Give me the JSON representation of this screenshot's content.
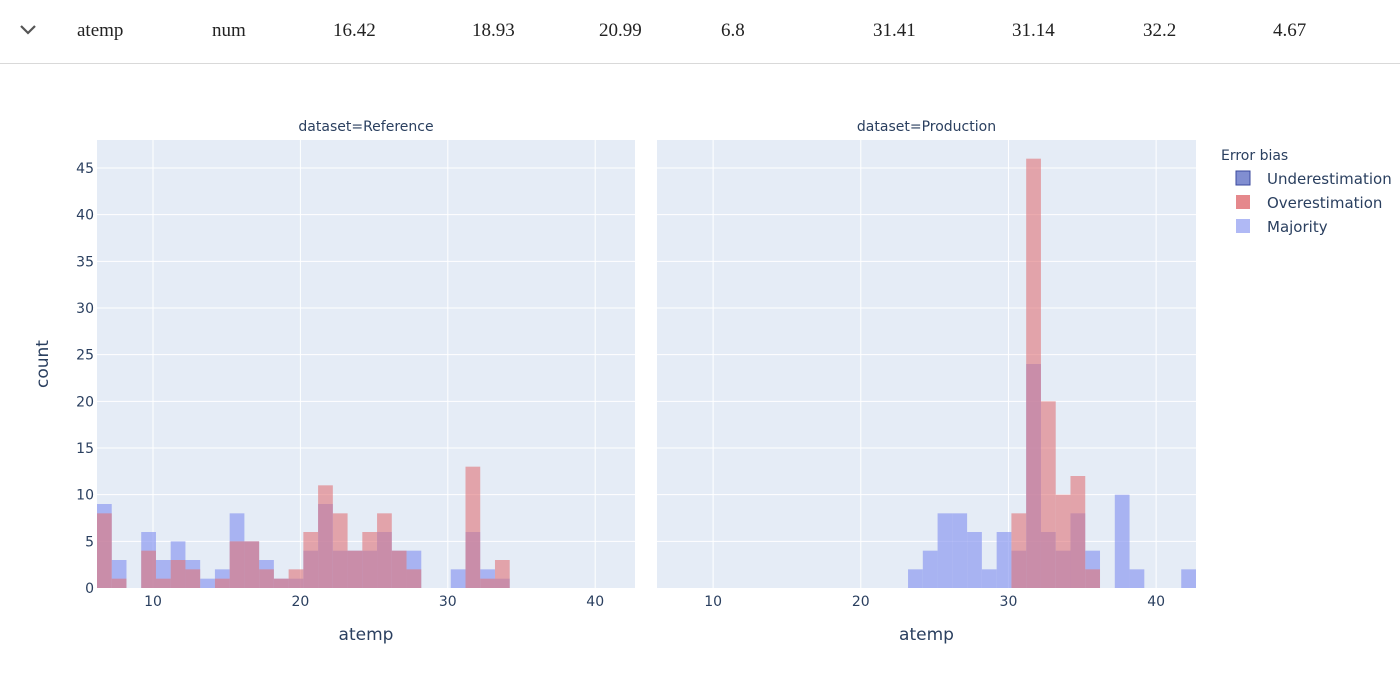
{
  "summary_row": {
    "feature": "atemp",
    "type": "num",
    "values": [
      "16.42",
      "18.93",
      "20.99",
      "6.8",
      "31.41",
      "31.14",
      "32.2",
      "4.67"
    ]
  },
  "colors": {
    "plot_bg": "#e5ecf6",
    "underestimation": "#6b7ac9",
    "overestimation": "#e07378",
    "majority": "#8f9bf1"
  },
  "chart_data": {
    "type": "bar",
    "barmode": "overlay",
    "ylabel": "count",
    "ylim": [
      0,
      48
    ],
    "yticks": [
      0,
      5,
      10,
      15,
      20,
      25,
      30,
      35,
      40,
      45
    ],
    "xticks": [
      10,
      20,
      30,
      40
    ],
    "grid": true,
    "legend": {
      "title": "Error bias",
      "placement": "right",
      "items": [
        "Underestimation",
        "Overestimation",
        "Majority"
      ]
    },
    "panels": [
      {
        "title": "dataset=Reference",
        "xlabel": "atemp",
        "xlim": [
          6.2,
          42.7
        ],
        "bin_width": 1,
        "series": [
          {
            "name": "Majority",
            "bins": [
              [
                6.2,
                9
              ],
              [
                7.2,
                3
              ],
              [
                9.2,
                6
              ],
              [
                10.2,
                3
              ],
              [
                11.2,
                5
              ],
              [
                12.2,
                3
              ],
              [
                13.2,
                1
              ],
              [
                14.2,
                2
              ],
              [
                15.2,
                8
              ],
              [
                16.2,
                5
              ],
              [
                17.2,
                3
              ],
              [
                18.2,
                1
              ],
              [
                19.2,
                1
              ],
              [
                20.2,
                4
              ],
              [
                21.2,
                9
              ],
              [
                22.2,
                4
              ],
              [
                23.2,
                4
              ],
              [
                24.2,
                4
              ],
              [
                25.2,
                6
              ],
              [
                26.2,
                4
              ],
              [
                27.2,
                4
              ],
              [
                30.2,
                2
              ],
              [
                31.2,
                6
              ],
              [
                32.2,
                2
              ],
              [
                33.2,
                1
              ]
            ]
          },
          {
            "name": "Overestimation",
            "bins": [
              [
                6.2,
                8
              ],
              [
                7.2,
                1
              ],
              [
                9.2,
                4
              ],
              [
                10.2,
                1
              ],
              [
                11.2,
                3
              ],
              [
                12.2,
                2
              ],
              [
                14.2,
                1
              ],
              [
                15.2,
                5
              ],
              [
                16.2,
                5
              ],
              [
                17.2,
                2
              ],
              [
                18.2,
                1
              ],
              [
                19.2,
                2
              ],
              [
                20.2,
                6
              ],
              [
                21.2,
                11
              ],
              [
                22.2,
                8
              ],
              [
                23.2,
                4
              ],
              [
                24.2,
                6
              ],
              [
                25.2,
                8
              ],
              [
                26.2,
                4
              ],
              [
                27.2,
                2
              ],
              [
                31.2,
                13
              ],
              [
                32.2,
                1
              ],
              [
                33.2,
                3
              ]
            ]
          }
        ]
      },
      {
        "title": "dataset=Production",
        "xlabel": "atemp",
        "xlim": [
          6.2,
          42.7
        ],
        "bin_width": 1,
        "series": [
          {
            "name": "Majority",
            "bins": [
              [
                23.2,
                2
              ],
              [
                24.2,
                4
              ],
              [
                25.2,
                8
              ],
              [
                26.2,
                8
              ],
              [
                27.2,
                6
              ],
              [
                28.2,
                2
              ],
              [
                29.2,
                6
              ],
              [
                30.2,
                4
              ],
              [
                31.2,
                24
              ],
              [
                32.2,
                6
              ],
              [
                33.2,
                4
              ],
              [
                34.2,
                8
              ],
              [
                35.2,
                4
              ],
              [
                37.2,
                10
              ],
              [
                38.2,
                2
              ],
              [
                41.7,
                2
              ]
            ]
          },
          {
            "name": "Overestimation",
            "bins": [
              [
                30.2,
                8
              ],
              [
                31.2,
                46
              ],
              [
                32.2,
                20
              ],
              [
                33.2,
                10
              ],
              [
                34.2,
                12
              ],
              [
                35.2,
                2
              ]
            ]
          }
        ]
      }
    ]
  }
}
